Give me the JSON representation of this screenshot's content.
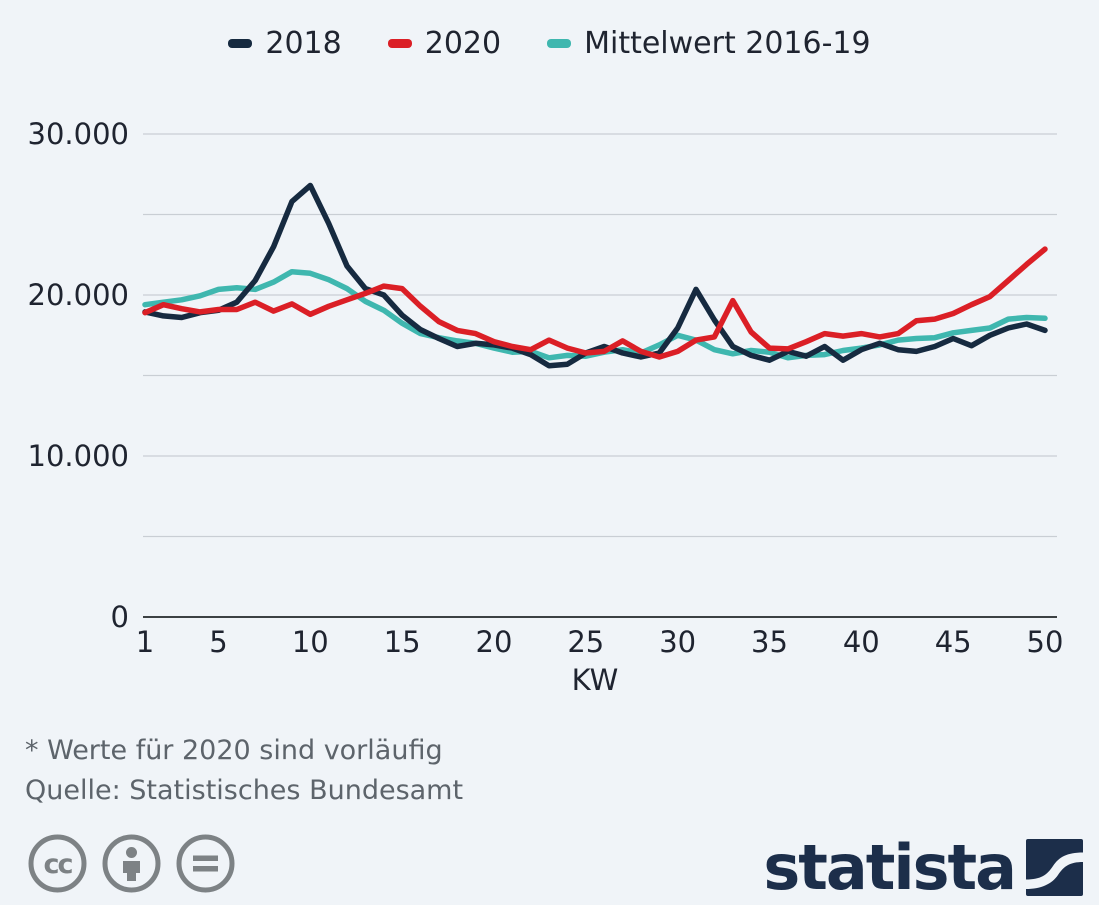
{
  "colors": {
    "background": "#f0f4f8",
    "gridline": "#c9ced4",
    "axis": "#3c4144",
    "tick_text": "#1f2430",
    "footnote_text": "#5d646b",
    "license_icon": "#7d8285",
    "brand_navy": "#1c2e4a"
  },
  "legend": [
    {
      "label": "2018",
      "color": "#162a40"
    },
    {
      "label": "2020",
      "color": "#db1f26"
    },
    {
      "label": "Mittelwert 2016-19",
      "color": "#3fb7af"
    }
  ],
  "chart_data": {
    "type": "line",
    "xlabel": "KW",
    "x_range": [
      1,
      50
    ],
    "x_ticks": [
      1,
      5,
      10,
      15,
      20,
      25,
      30,
      35,
      40,
      45,
      50
    ],
    "ylim": [
      0,
      30000
    ],
    "grid_interval": 5000,
    "grid": "on",
    "legend_position": "top",
    "y_ticks": [
      {
        "value": 0,
        "label": "0"
      },
      {
        "value": 10000,
        "label": "10.000"
      },
      {
        "value": 20000,
        "label": "20.000"
      },
      {
        "value": 30000,
        "label": "30.000"
      }
    ],
    "x": [
      1,
      2,
      3,
      4,
      5,
      6,
      7,
      8,
      9,
      10,
      11,
      12,
      13,
      14,
      15,
      16,
      17,
      18,
      19,
      20,
      21,
      22,
      23,
      24,
      25,
      26,
      27,
      28,
      29,
      30,
      31,
      32,
      33,
      34,
      35,
      36,
      37,
      38,
      39,
      40,
      41,
      42,
      43,
      44,
      45,
      46,
      47,
      48,
      49,
      50
    ],
    "series": [
      {
        "name": "2018",
        "key": "2018",
        "color": "#162a40",
        "values": [
          18950,
          18700,
          18600,
          18900,
          19050,
          19550,
          20900,
          23000,
          25800,
          26800,
          24450,
          21800,
          20400,
          20000,
          18750,
          17850,
          17300,
          16800,
          17000,
          16900,
          16700,
          16300,
          15600,
          15700,
          16400,
          16800,
          16400,
          16150,
          16400,
          17950,
          20350,
          18450,
          16800,
          16250,
          15950,
          16500,
          16200,
          16800,
          15950,
          16600,
          17000,
          16600,
          16500,
          16800,
          17300,
          16850,
          17500,
          17950,
          18200,
          17800
        ]
      },
      {
        "name": "2020",
        "key": "2020",
        "color": "#db1f26",
        "values": [
          18900,
          19400,
          19150,
          18950,
          19100,
          19100,
          19550,
          19000,
          19450,
          18800,
          19300,
          19700,
          20100,
          20550,
          20400,
          19300,
          18350,
          17800,
          17600,
          17100,
          16800,
          16600,
          17200,
          16700,
          16400,
          16500,
          17150,
          16500,
          16150,
          16500,
          17200,
          17400,
          19650,
          17700,
          16700,
          16650,
          17100,
          17600,
          17450,
          17600,
          17400,
          17600,
          18400,
          18500,
          18850,
          19400,
          19900,
          20900,
          21900,
          22850
        ]
      },
      {
        "name": "Mittelwert 2016-19",
        "key": "mittelwert-2016-19",
        "color": "#3fb7af",
        "values": [
          19400,
          19550,
          19700,
          19950,
          20350,
          20450,
          20350,
          20800,
          21450,
          21350,
          20950,
          20400,
          19600,
          19050,
          18250,
          17600,
          17350,
          17150,
          17000,
          16700,
          16450,
          16500,
          16100,
          16250,
          16200,
          16450,
          16600,
          16400,
          16900,
          17500,
          17200,
          16600,
          16350,
          16550,
          16450,
          16100,
          16250,
          16300,
          16550,
          16700,
          16900,
          17200,
          17300,
          17350,
          17650,
          17800,
          17950,
          18500,
          18600,
          18550
        ]
      }
    ],
    "draw_order": [
      2,
      0,
      1
    ]
  },
  "footnotes": {
    "line1": "* Werte für 2020 sind vorläufig",
    "line2": "Quelle: Statistisches Bundesamt"
  },
  "branding": {
    "logo_text": "statista"
  }
}
